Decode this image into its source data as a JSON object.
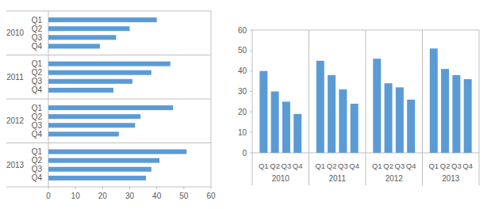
{
  "chart_data": [
    {
      "type": "bar",
      "orientation": "horizontal",
      "categories": [
        "Q1",
        "Q2",
        "Q3",
        "Q4",
        "Q1",
        "Q2",
        "Q3",
        "Q4",
        "Q1",
        "Q2",
        "Q3",
        "Q4",
        "Q1",
        "Q2",
        "Q3",
        "Q4"
      ],
      "category_groups": [
        "2010",
        "2011",
        "2012",
        "2013"
      ],
      "values": [
        40,
        30,
        25,
        19,
        45,
        38,
        31,
        24,
        46,
        34,
        32,
        26,
        51,
        41,
        38,
        36
      ],
      "color": "#5b9bd5",
      "xlim": [
        0,
        60
      ],
      "xticks": [
        0,
        10,
        20,
        30,
        40,
        50,
        60
      ],
      "grid": false
    },
    {
      "type": "bar",
      "categories": [
        "Q1",
        "Q2",
        "Q3",
        "Q4",
        "Q1",
        "Q2",
        "Q3",
        "Q4",
        "Q1",
        "Q2",
        "Q3",
        "Q4",
        "Q1",
        "Q2",
        "Q3",
        "Q4"
      ],
      "category_groups": [
        "2010",
        "2011",
        "2012",
        "2013"
      ],
      "values": [
        40,
        30,
        25,
        19,
        45,
        38,
        31,
        24,
        46,
        34,
        32,
        26,
        51,
        41,
        38,
        36
      ],
      "color": "#5b9bd5",
      "ylim": [
        0,
        60
      ],
      "yticks": [
        0,
        10,
        20,
        30,
        40,
        50,
        60
      ],
      "grid": false
    }
  ]
}
